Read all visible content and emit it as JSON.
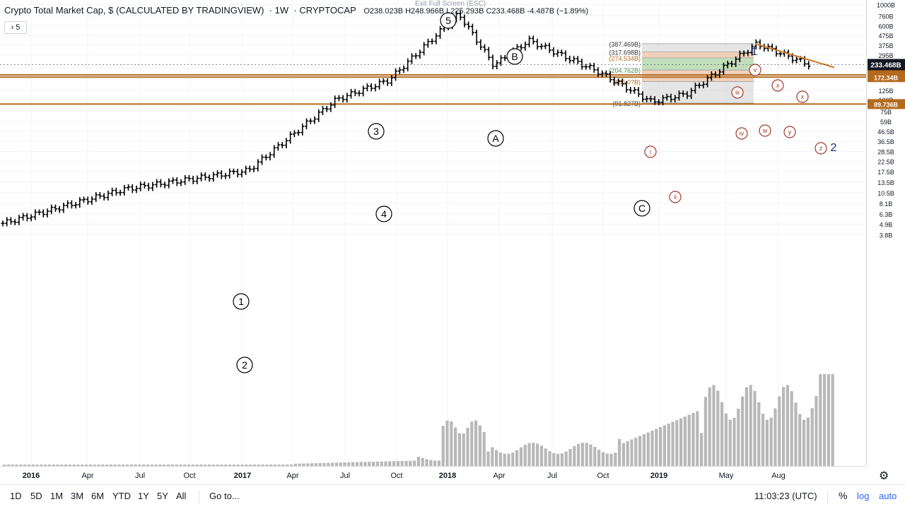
{
  "header": {
    "symbol_title": "Crypto Total Market Cap, $ (CALCULATED BY TRADINGVIEW)",
    "interval": "1W",
    "ticker": "CRYPTOCAP",
    "ohlc": "O238.023B  H248.966B  L225.293B  C233.468B  -4.487B (−1.89%)",
    "indicator_toggle": "› 5",
    "exit_fullscreen": "Exit Full Screen (ESC)"
  },
  "price_axis": {
    "ticks": [
      "1000B",
      "760B",
      "600B",
      "475B",
      "375B",
      "295B",
      "215B",
      "125B",
      "100B",
      "75B",
      "59B",
      "46.5B",
      "36.5B",
      "28.5B",
      "22.5B",
      "17.5B",
      "13.5B",
      "10.5B",
      "8.1B",
      "6.3B",
      "4.9B",
      "3.8B"
    ],
    "current_price": "233.468B",
    "hline_labels": [
      "181.806B",
      "172.34B",
      "89.736B"
    ],
    "colors": {
      "current": "#131722",
      "hline": "#b36a1d"
    }
  },
  "time_axis": {
    "labels": [
      "2016",
      "Apr",
      "Jul",
      "Oct",
      "2017",
      "Apr",
      "Jul",
      "Oct",
      "2018",
      "Apr",
      "Jul",
      "Oct",
      "2019",
      "May",
      "Aug"
    ]
  },
  "fib": {
    "labels": [
      "(387.469B)",
      "(317.698B)",
      "(274.534B)",
      "(204.762B)",
      "(155.0?B)",
      "(91.827B)"
    ]
  },
  "waves": {
    "labels": [
      "1",
      "2",
      "3",
      "4",
      "5",
      "A",
      "B",
      "C",
      "i",
      "ii",
      "iii",
      "iv",
      "v",
      "w",
      "x",
      "y",
      "x",
      "z",
      "1",
      "2"
    ]
  },
  "bottom_bar": {
    "timeframes": [
      "1D",
      "5D",
      "1M",
      "3M",
      "6M",
      "YTD",
      "1Y",
      "5Y",
      "All"
    ],
    "goto_label": "Go to...",
    "clock": "11:03:23 (UTC)",
    "percent_label": "%",
    "log_label": "log",
    "auto_label": "auto"
  },
  "settings_icon": "gear-icon",
  "chart_data": {
    "type": "bar",
    "title": "Crypto Total Market Cap, $ (CALCULATED BY TRADINGVIEW)",
    "scale": "log",
    "ylim": [
      3.5,
      1000
    ],
    "unit": "B",
    "x_range": [
      "2015-11",
      "2019-10"
    ],
    "key_points": [
      {
        "date": "2015-11",
        "value": 5.0
      },
      {
        "date": "2016-06",
        "value": 11.5
      },
      {
        "date": "2017-01",
        "value": 18.0
      },
      {
        "date": "2017-06",
        "value": 100
      },
      {
        "date": "2017-09",
        "value": 160
      },
      {
        "date": "2018-01",
        "value": 800
      },
      {
        "date": "2018-03",
        "value": 230
      },
      {
        "date": "2018-05",
        "value": 420
      },
      {
        "date": "2018-09",
        "value": 195
      },
      {
        "date": "2018-12",
        "value": 95
      },
      {
        "date": "2019-02",
        "value": 115
      },
      {
        "date": "2019-06",
        "value": 387
      },
      {
        "date": "2019-09",
        "value": 233.468
      }
    ],
    "horizontal_levels": [
      181.806,
      172.34,
      89.736
    ],
    "fib_levels": [
      387.469,
      317.698,
      274.534,
      204.762,
      155.0,
      91.827
    ],
    "volume_unit": "relative"
  }
}
